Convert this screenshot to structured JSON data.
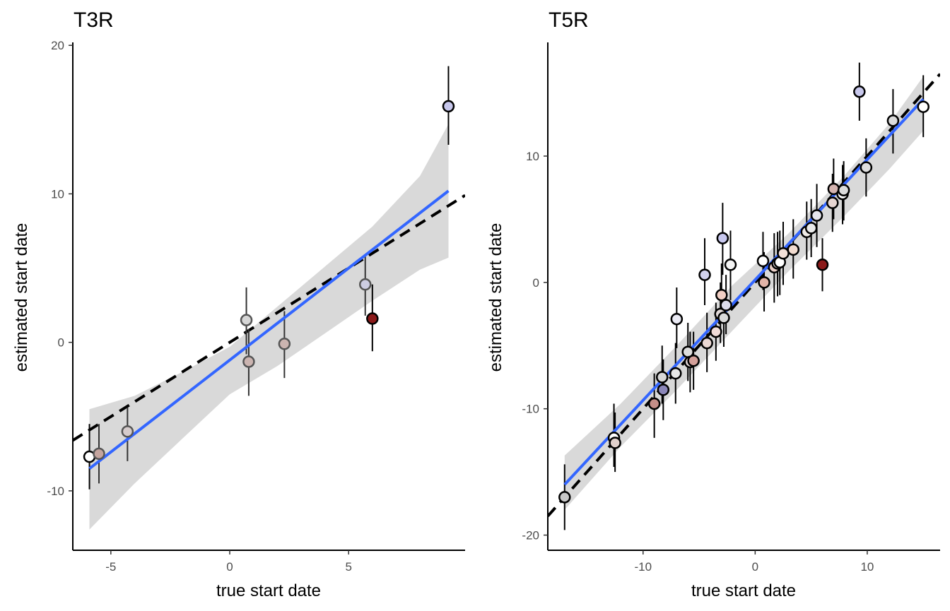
{
  "chart_data": [
    {
      "type": "scatter",
      "title": "T3R",
      "xlabel": "true start date",
      "ylabel": "estimated start date",
      "xlim": [
        -6.6,
        9.9
      ],
      "ylim": [
        -14,
        20.2
      ],
      "xticks": [
        -5,
        0,
        5
      ],
      "yticks": [
        -10,
        0,
        10,
        20
      ],
      "grid": false,
      "legend": "none",
      "identity_line": {
        "slope": 1,
        "intercept": 0,
        "style": "dashed",
        "color": "#000000"
      },
      "fit_line": {
        "x": [
          -5.9,
          9.2
        ],
        "y": [
          -8.5,
          10.2
        ],
        "color": "#3366FF"
      },
      "confidence_band": {
        "x": [
          -5.9,
          -4.0,
          -2.0,
          0.0,
          2.0,
          4.0,
          6.0,
          8.0,
          9.2
        ],
        "lower": [
          -12.6,
          -9.5,
          -6.5,
          -3.5,
          -1.6,
          0.6,
          2.8,
          4.9,
          5.7
        ],
        "upper": [
          -4.5,
          -3.6,
          -2.0,
          -0.3,
          2.4,
          5.1,
          7.8,
          11.2,
          14.7
        ],
        "color": "#d9d9d9"
      },
      "points": [
        {
          "x": -5.9,
          "y": -7.7,
          "ymin": -9.9,
          "ymax": -5.5,
          "fill": "#ffffff",
          "stroke": "#000000"
        },
        {
          "x": -5.5,
          "y": -7.5,
          "ymin": -9.5,
          "ymax": -5.5,
          "fill": "#c4a49e",
          "stroke": "#555555"
        },
        {
          "x": -4.3,
          "y": -6.0,
          "ymin": -8.0,
          "ymax": -4.4,
          "fill": "#d6cccc",
          "stroke": "#555555"
        },
        {
          "x": 0.7,
          "y": 1.5,
          "ymin": -0.8,
          "ymax": 3.7,
          "fill": "#d6d6d6",
          "stroke": "#555555"
        },
        {
          "x": 0.8,
          "y": -1.3,
          "ymin": -3.6,
          "ymax": 0.9,
          "fill": "#cbb4b0",
          "stroke": "#555555"
        },
        {
          "x": 2.3,
          "y": -0.1,
          "ymin": -2.4,
          "ymax": 2.1,
          "fill": "#cbb4b0",
          "stroke": "#555555"
        },
        {
          "x": 5.7,
          "y": 3.9,
          "ymin": 1.8,
          "ymax": 5.8,
          "fill": "#cdcde2",
          "stroke": "#555555"
        },
        {
          "x": 6.0,
          "y": 1.6,
          "ymin": -0.6,
          "ymax": 3.9,
          "fill": "#8b1a1a",
          "stroke": "#000000"
        },
        {
          "x": 9.2,
          "y": 15.9,
          "ymin": 13.3,
          "ymax": 18.6,
          "fill": "#c7c7ec",
          "stroke": "#000000"
        }
      ]
    },
    {
      "type": "scatter",
      "title": "T5R",
      "xlabel": "true start date",
      "ylabel": "estimated start date",
      "xlim": [
        -18.5,
        16.5
      ],
      "ylim": [
        -21.2,
        19.0
      ],
      "xticks": [
        -10,
        0,
        10
      ],
      "yticks": [
        -20,
        -10,
        0,
        10
      ],
      "grid": false,
      "legend": "none",
      "identity_line": {
        "slope": 1,
        "intercept": 0,
        "style": "dashed",
        "color": "#000000"
      },
      "fit_line": {
        "x": [
          -17.0,
          15.0
        ],
        "y": [
          -16.0,
          14.5
        ],
        "color": "#3366FF"
      },
      "confidence_band": {
        "x": [
          -17.0,
          -12.0,
          -7.0,
          -2.0,
          3.0,
          8.0,
          12.0,
          15.0
        ],
        "lower": [
          -18.0,
          -13.0,
          -8.5,
          -3.8,
          0.9,
          5.3,
          9.0,
          12.0
        ],
        "upper": [
          -13.7,
          -9.6,
          -5.0,
          -0.2,
          3.9,
          8.5,
          12.6,
          16.3
        ],
        "color": "#d9d9d9"
      },
      "points": [
        {
          "x": -17.0,
          "y": -17.0,
          "ymin": -19.6,
          "ymax": -14.4,
          "fill": "#c8c8c8",
          "stroke": "#000000"
        },
        {
          "x": -12.6,
          "y": -12.3,
          "ymin": -14.6,
          "ymax": -9.6,
          "fill": "#ffffff",
          "stroke": "#000000"
        },
        {
          "x": -12.5,
          "y": -12.7,
          "ymin": -15.0,
          "ymax": -10.3,
          "fill": "#e0d0cc",
          "stroke": "#000000"
        },
        {
          "x": -9.0,
          "y": -9.6,
          "ymin": -12.3,
          "ymax": -7.2,
          "fill": "#c48e88",
          "stroke": "#000000"
        },
        {
          "x": -8.3,
          "y": -7.5,
          "ymin": -9.6,
          "ymax": -5.0,
          "fill": "#d8d8d8",
          "stroke": "#000000"
        },
        {
          "x": -8.2,
          "y": -8.5,
          "ymin": -10.9,
          "ymax": -6.1,
          "fill": "#8b86b8",
          "stroke": "#000000"
        },
        {
          "x": -7.1,
          "y": -7.2,
          "ymin": -9.6,
          "ymax": -4.8,
          "fill": "#e6e6e6",
          "stroke": "#000000"
        },
        {
          "x": -7.0,
          "y": -2.9,
          "ymin": -5.2,
          "ymax": -0.4,
          "fill": "#ebebf5",
          "stroke": "#000000"
        },
        {
          "x": -6.0,
          "y": -5.5,
          "ymin": -7.8,
          "ymax": -3.2,
          "fill": "#dddddd",
          "stroke": "#000000"
        },
        {
          "x": -5.8,
          "y": -6.3,
          "ymin": -8.7,
          "ymax": -3.9,
          "fill": "#e6dada",
          "stroke": "#000000"
        },
        {
          "x": -5.5,
          "y": -6.2,
          "ymin": -8.5,
          "ymax": -3.9,
          "fill": "#d4a09a",
          "stroke": "#000000"
        },
        {
          "x": -4.5,
          "y": 0.6,
          "ymin": -1.8,
          "ymax": 3.5,
          "fill": "#d0d0ec",
          "stroke": "#000000"
        },
        {
          "x": -4.3,
          "y": -4.8,
          "ymin": -7.1,
          "ymax": -2.4,
          "fill": "#ead8d4",
          "stroke": "#000000"
        },
        {
          "x": -3.5,
          "y": -3.9,
          "ymin": -6.2,
          "ymax": -1.6,
          "fill": "#f0dcd8",
          "stroke": "#000000"
        },
        {
          "x": -3.1,
          "y": -2.5,
          "ymin": -4.8,
          "ymax": 0.0,
          "fill": "#e0d8d8",
          "stroke": "#000000"
        },
        {
          "x": -3.0,
          "y": -1.0,
          "ymin": -3.2,
          "ymax": 1.5,
          "fill": "#f2cfc4",
          "stroke": "#000000"
        },
        {
          "x": -2.9,
          "y": 3.5,
          "ymin": 0.6,
          "ymax": 6.3,
          "fill": "#c8c8ee",
          "stroke": "#000000"
        },
        {
          "x": -2.8,
          "y": -2.8,
          "ymin": -5.1,
          "ymax": -0.6,
          "fill": "#dadada",
          "stroke": "#000000"
        },
        {
          "x": -2.6,
          "y": -1.8,
          "ymin": -4.1,
          "ymax": 0.6,
          "fill": "#dcdcec",
          "stroke": "#000000"
        },
        {
          "x": -2.2,
          "y": 1.4,
          "ymin": -1.4,
          "ymax": 4.1,
          "fill": "#f4f4f4",
          "stroke": "#000000"
        },
        {
          "x": 0.7,
          "y": 1.7,
          "ymin": -0.6,
          "ymax": 4.0,
          "fill": "#ffffff",
          "stroke": "#000000"
        },
        {
          "x": 0.8,
          "y": 0.0,
          "ymin": -2.3,
          "ymax": 2.4,
          "fill": "#e2b4a8",
          "stroke": "#000000"
        },
        {
          "x": 1.7,
          "y": 1.2,
          "ymin": -1.6,
          "ymax": 3.9,
          "fill": "#ead0c8",
          "stroke": "#000000"
        },
        {
          "x": 2.0,
          "y": 1.5,
          "ymin": -1.1,
          "ymax": 4.0,
          "fill": "#f0e8e8",
          "stroke": "#000000"
        },
        {
          "x": 2.2,
          "y": 1.6,
          "ymin": -1.0,
          "ymax": 4.1,
          "fill": "#ffffff",
          "stroke": "#000000"
        },
        {
          "x": 2.5,
          "y": 2.3,
          "ymin": -0.2,
          "ymax": 4.8,
          "fill": "#f2e0d8",
          "stroke": "#000000"
        },
        {
          "x": 3.4,
          "y": 2.6,
          "ymin": 0.3,
          "ymax": 5.0,
          "fill": "#f2dcd0",
          "stroke": "#000000"
        },
        {
          "x": 4.6,
          "y": 4.0,
          "ymin": 1.8,
          "ymax": 6.4,
          "fill": "#f0ece8",
          "stroke": "#000000"
        },
        {
          "x": 5.0,
          "y": 4.3,
          "ymin": 2.0,
          "ymax": 6.6,
          "fill": "#eaeaea",
          "stroke": "#000000"
        },
        {
          "x": 5.5,
          "y": 5.3,
          "ymin": 2.8,
          "ymax": 7.8,
          "fill": "#e6e6ec",
          "stroke": "#000000"
        },
        {
          "x": 6.0,
          "y": 1.4,
          "ymin": -0.7,
          "ymax": 3.5,
          "fill": "#8b1a1a",
          "stroke": "#000000"
        },
        {
          "x": 6.9,
          "y": 6.3,
          "ymin": 4.0,
          "ymax": 8.6,
          "fill": "#e6d6d2",
          "stroke": "#000000"
        },
        {
          "x": 7.0,
          "y": 7.4,
          "ymin": 5.0,
          "ymax": 9.8,
          "fill": "#d4b4b0",
          "stroke": "#000000"
        },
        {
          "x": 7.8,
          "y": 7.0,
          "ymin": 4.6,
          "ymax": 9.3,
          "fill": "#ffffff",
          "stroke": "#000000"
        },
        {
          "x": 7.9,
          "y": 7.3,
          "ymin": 4.9,
          "ymax": 9.6,
          "fill": "#dcdcdc",
          "stroke": "#000000"
        },
        {
          "x": 9.3,
          "y": 15.1,
          "ymin": 12.8,
          "ymax": 17.4,
          "fill": "#c8c8ec",
          "stroke": "#000000"
        },
        {
          "x": 9.9,
          "y": 9.1,
          "ymin": 6.8,
          "ymax": 11.4,
          "fill": "#dedede",
          "stroke": "#000000"
        },
        {
          "x": 12.3,
          "y": 12.8,
          "ymin": 10.2,
          "ymax": 15.3,
          "fill": "#dcdcdc",
          "stroke": "#000000"
        },
        {
          "x": 15.0,
          "y": 13.9,
          "ymin": 11.5,
          "ymax": 16.4,
          "fill": "#ffffff",
          "stroke": "#000000"
        }
      ]
    }
  ]
}
